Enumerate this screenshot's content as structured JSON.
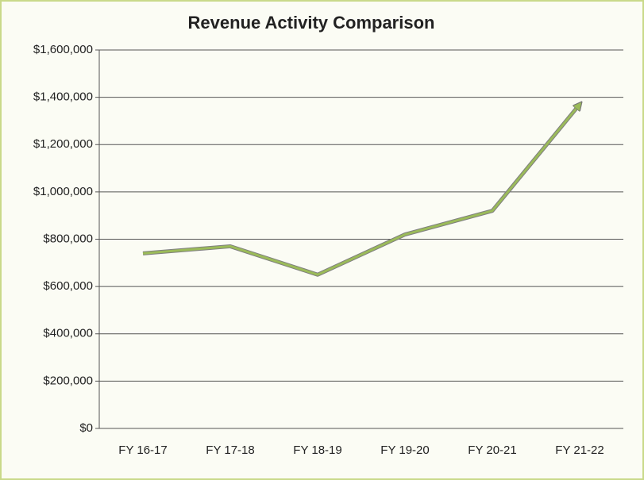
{
  "chart_data": {
    "type": "line",
    "title": "Revenue Activity Comparison",
    "categories": [
      "FY 16-17",
      "FY 17-18",
      "FY 18-19",
      "FY 19-20",
      "FY 20-21",
      "FY 21-22"
    ],
    "series": [
      {
        "name": "Revenue",
        "color": "#9bbb59",
        "values": [
          740000,
          770000,
          650000,
          820000,
          920000,
          1370000
        ]
      }
    ],
    "ylim": [
      0,
      1600000
    ],
    "yticks": [
      {
        "value": 0,
        "label": "$0"
      },
      {
        "value": 200000,
        "label": "$200,000"
      },
      {
        "value": 400000,
        "label": "$400,000"
      },
      {
        "value": 600000,
        "label": "$600,000"
      },
      {
        "value": 800000,
        "label": "$800,000"
      },
      {
        "value": 1000000,
        "label": "$1,000,000"
      },
      {
        "value": 1200000,
        "label": "$1,200,000"
      },
      {
        "value": 1400000,
        "label": "$1,400,000"
      },
      {
        "value": 1600000,
        "label": "$1,600,000"
      }
    ],
    "grid": true
  }
}
